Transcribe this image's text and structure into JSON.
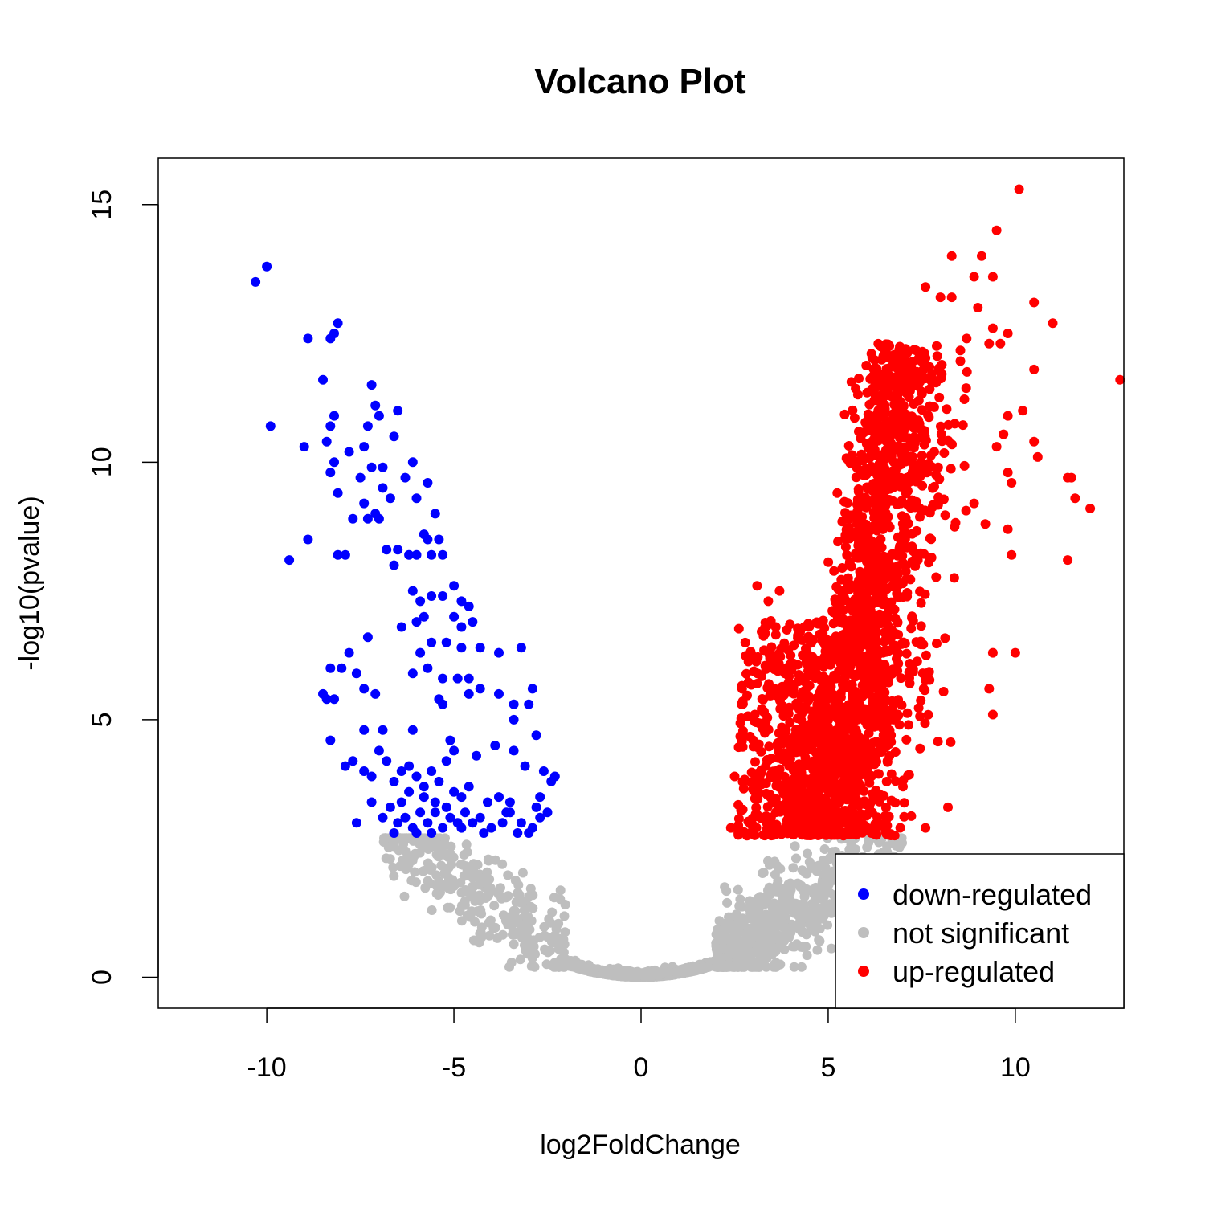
{
  "chart_data": {
    "type": "scatter",
    "title": "Volcano Plot",
    "xlabel": "log2FoldChange",
    "ylabel": "-log10(pvalue)",
    "xlim": [
      -12.9,
      12.9
    ],
    "ylim": [
      -0.6,
      15.9
    ],
    "x_ticks": [
      -10,
      -5,
      0,
      5,
      10
    ],
    "x_tick_labels": [
      "-10",
      "-5",
      "0",
      "5",
      "10"
    ],
    "y_ticks": [
      0,
      5,
      10,
      15
    ],
    "y_tick_labels": [
      "0",
      "5",
      "10",
      "15"
    ],
    "grid": false,
    "legend_position": "bottom-right",
    "thresholds": {
      "log2fc": 2,
      "neg_log10_p": 2.75
    },
    "series": [
      {
        "name": "down-regulated",
        "color": "#0000ff",
        "points": [
          [
            -10.3,
            13.5
          ],
          [
            -10.0,
            13.8
          ],
          [
            -9.9,
            10.7
          ],
          [
            -9.4,
            8.1
          ],
          [
            -9.0,
            10.3
          ],
          [
            -8.9,
            12.4
          ],
          [
            -8.9,
            8.5
          ],
          [
            -8.5,
            11.6
          ],
          [
            -8.3,
            12.4
          ],
          [
            -8.2,
            12.5
          ],
          [
            -8.1,
            12.7
          ],
          [
            -8.4,
            10.4
          ],
          [
            -8.3,
            10.7
          ],
          [
            -8.2,
            10.9
          ],
          [
            -8.3,
            9.8
          ],
          [
            -8.2,
            10.0
          ],
          [
            -8.1,
            8.2
          ],
          [
            -7.9,
            8.2
          ],
          [
            -8.1,
            9.4
          ],
          [
            -7.8,
            10.2
          ],
          [
            -7.5,
            9.7
          ],
          [
            -7.3,
            10.7
          ],
          [
            -7.2,
            11.5
          ],
          [
            -7.1,
            11.1
          ],
          [
            -7.0,
            10.9
          ],
          [
            -7.4,
            10.3
          ],
          [
            -7.2,
            9.9
          ],
          [
            -6.9,
            9.9
          ],
          [
            -7.7,
            8.9
          ],
          [
            -7.4,
            9.2
          ],
          [
            -7.1,
            9.0
          ],
          [
            -6.9,
            9.5
          ],
          [
            -6.7,
            9.3
          ],
          [
            -6.5,
            11.0
          ],
          [
            -6.6,
            10.5
          ],
          [
            -6.3,
            9.7
          ],
          [
            -6.1,
            10.0
          ],
          [
            -6.0,
            9.3
          ],
          [
            -5.7,
            9.6
          ],
          [
            -5.5,
            9.0
          ],
          [
            -5.8,
            8.6
          ],
          [
            -6.0,
            8.2
          ],
          [
            -6.2,
            8.2
          ],
          [
            -6.5,
            8.3
          ],
          [
            -6.8,
            8.3
          ],
          [
            -6.6,
            8.0
          ],
          [
            -7.3,
            8.9
          ],
          [
            -7.0,
            8.9
          ],
          [
            -5.7,
            8.5
          ],
          [
            -5.6,
            8.2
          ],
          [
            -5.4,
            8.5
          ],
          [
            -5.3,
            8.2
          ],
          [
            -6.1,
            7.5
          ],
          [
            -5.9,
            7.3
          ],
          [
            -5.6,
            7.4
          ],
          [
            -5.3,
            7.4
          ],
          [
            -5.0,
            7.6
          ],
          [
            -4.8,
            7.3
          ],
          [
            -4.6,
            7.2
          ],
          [
            -5.0,
            7.0
          ],
          [
            -4.8,
            6.8
          ],
          [
            -4.5,
            6.9
          ],
          [
            -5.8,
            7.0
          ],
          [
            -6.0,
            6.9
          ],
          [
            -6.4,
            6.8
          ],
          [
            -5.6,
            6.5
          ],
          [
            -5.9,
            6.3
          ],
          [
            -5.2,
            6.5
          ],
          [
            -4.8,
            6.4
          ],
          [
            -4.3,
            6.4
          ],
          [
            -7.8,
            6.3
          ],
          [
            -7.3,
            6.6
          ],
          [
            -3.8,
            6.3
          ],
          [
            -3.2,
            6.4
          ],
          [
            -6.1,
            5.9
          ],
          [
            -5.7,
            6.0
          ],
          [
            -5.3,
            5.8
          ],
          [
            -4.9,
            5.8
          ],
          [
            -4.6,
            5.8
          ],
          [
            -4.3,
            5.6
          ],
          [
            -3.8,
            5.5
          ],
          [
            -3.4,
            5.3
          ],
          [
            -2.9,
            5.6
          ],
          [
            -3.0,
            5.3
          ],
          [
            -3.4,
            5.0
          ],
          [
            -8.5,
            5.5
          ],
          [
            -8.3,
            6.0
          ],
          [
            -8.0,
            6.0
          ],
          [
            -8.4,
            5.4
          ],
          [
            -8.2,
            5.4
          ],
          [
            -7.6,
            5.9
          ],
          [
            -7.4,
            5.6
          ],
          [
            -7.1,
            5.5
          ],
          [
            -5.4,
            5.4
          ],
          [
            -5.3,
            5.3
          ],
          [
            -4.6,
            5.5
          ],
          [
            -7.4,
            4.8
          ],
          [
            -6.9,
            4.8
          ],
          [
            -6.1,
            4.8
          ],
          [
            -5.1,
            4.6
          ],
          [
            -5.0,
            4.4
          ],
          [
            -8.3,
            4.6
          ],
          [
            -7.9,
            4.1
          ],
          [
            -7.7,
            4.2
          ],
          [
            -7.4,
            4.0
          ],
          [
            -7.2,
            3.9
          ],
          [
            -7.0,
            4.4
          ],
          [
            -6.8,
            4.2
          ],
          [
            -6.6,
            3.8
          ],
          [
            -6.4,
            4.0
          ],
          [
            -6.2,
            4.1
          ],
          [
            -6.0,
            3.9
          ],
          [
            -5.8,
            3.7
          ],
          [
            -5.6,
            4.0
          ],
          [
            -5.4,
            3.8
          ],
          [
            -5.2,
            4.2
          ],
          [
            -5.0,
            3.6
          ],
          [
            -4.8,
            3.5
          ],
          [
            -4.6,
            3.7
          ],
          [
            -4.4,
            4.3
          ],
          [
            -4.1,
            3.4
          ],
          [
            -3.9,
            4.5
          ],
          [
            -3.6,
            3.2
          ],
          [
            -3.4,
            4.4
          ],
          [
            -3.1,
            4.1
          ],
          [
            -2.8,
            4.7
          ],
          [
            -2.7,
            3.5
          ],
          [
            -2.5,
            3.2
          ],
          [
            -2.4,
            3.8
          ],
          [
            -2.3,
            3.9
          ],
          [
            -2.6,
            4.0
          ],
          [
            -7.2,
            3.4
          ],
          [
            -6.9,
            3.1
          ],
          [
            -6.7,
            3.3
          ],
          [
            -6.5,
            3.0
          ],
          [
            -6.3,
            3.1
          ],
          [
            -6.1,
            2.9
          ],
          [
            -5.9,
            3.2
          ],
          [
            -5.7,
            3.0
          ],
          [
            -5.5,
            3.2
          ],
          [
            -5.3,
            2.9
          ],
          [
            -5.1,
            3.1
          ],
          [
            -4.9,
            3.0
          ],
          [
            -4.7,
            3.2
          ],
          [
            -4.5,
            3.0
          ],
          [
            -4.3,
            3.1
          ],
          [
            -4.0,
            2.9
          ],
          [
            -3.7,
            3.0
          ],
          [
            -3.5,
            3.2
          ],
          [
            -3.2,
            3.0
          ],
          [
            -2.9,
            2.9
          ],
          [
            -2.7,
            3.1
          ],
          [
            -7.6,
            3.0
          ],
          [
            -6.6,
            2.8
          ],
          [
            -6.0,
            2.8
          ],
          [
            -5.6,
            2.8
          ],
          [
            -4.2,
            2.8
          ],
          [
            -3.3,
            2.8
          ],
          [
            -3.0,
            2.8
          ],
          [
            -2.8,
            3.3
          ],
          [
            -6.4,
            3.4
          ],
          [
            -5.8,
            3.5
          ],
          [
            -5.2,
            3.3
          ],
          [
            -4.8,
            2.9
          ],
          [
            -6.2,
            3.6
          ],
          [
            -5.5,
            3.4
          ],
          [
            -3.8,
            3.5
          ],
          [
            -3.5,
            3.4
          ]
        ]
      },
      {
        "name": "not significant",
        "color": "#bebebe",
        "points": []
      },
      {
        "name": "up-regulated",
        "color": "#ff0000",
        "points": [
          [
            10.1,
            15.3
          ],
          [
            9.5,
            14.5
          ],
          [
            8.3,
            14.0
          ],
          [
            9.1,
            14.0
          ],
          [
            9.4,
            13.6
          ],
          [
            8.9,
            13.6
          ],
          [
            7.6,
            13.4
          ],
          [
            8.0,
            13.2
          ],
          [
            8.3,
            13.2
          ],
          [
            9.0,
            13.0
          ],
          [
            10.5,
            13.1
          ],
          [
            11.0,
            12.7
          ],
          [
            9.4,
            12.6
          ],
          [
            9.8,
            12.5
          ],
          [
            8.7,
            12.4
          ],
          [
            9.3,
            12.3
          ],
          [
            9.6,
            12.3
          ],
          [
            10.5,
            11.8
          ],
          [
            12.8,
            11.6
          ],
          [
            10.2,
            11.0
          ],
          [
            9.8,
            10.9
          ],
          [
            10.5,
            10.4
          ],
          [
            10.6,
            10.1
          ],
          [
            9.5,
            10.3
          ],
          [
            9.8,
            9.8
          ],
          [
            11.4,
            9.7
          ],
          [
            11.5,
            9.7
          ],
          [
            9.9,
            9.6
          ],
          [
            11.6,
            9.3
          ],
          [
            12.0,
            9.1
          ],
          [
            9.8,
            8.7
          ],
          [
            9.9,
            8.2
          ],
          [
            11.4,
            8.1
          ],
          [
            10.0,
            6.3
          ],
          [
            9.4,
            6.3
          ],
          [
            9.3,
            5.6
          ],
          [
            9.4,
            5.1
          ],
          [
            3.1,
            7.6
          ],
          [
            3.7,
            7.5
          ],
          [
            3.4,
            7.3
          ],
          [
            3.6,
            6.8
          ],
          [
            2.7,
            5.6
          ],
          [
            3.1,
            5.7
          ],
          [
            2.5,
            3.9
          ],
          [
            2.4,
            2.9
          ],
          [
            8.2,
            3.3
          ],
          [
            7.6,
            2.9
          ],
          [
            8.9,
            9.2
          ],
          [
            9.2,
            8.8
          ]
        ],
        "dense_clusters": [
          {
            "x_range": [
              2.6,
              8.4
            ],
            "y_range": [
              2.8,
              6.5
            ],
            "note": "dense cloud at low significance"
          },
          {
            "x_range": [
              5.0,
              8.6
            ],
            "y_range": [
              6.5,
              12.5
            ],
            "note": "dense ridge rising with fold change"
          }
        ]
      }
    ],
    "legend": [
      "down-regulated",
      "not significant",
      "up-regulated"
    ]
  }
}
